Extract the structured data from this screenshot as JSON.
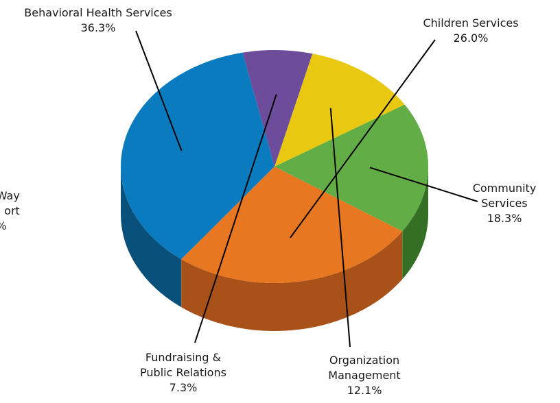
{
  "chart_data": {
    "type": "pie",
    "style": "3d",
    "title": "",
    "legend": "none",
    "slices": [
      {
        "label": "Behavioral Health Services",
        "label_lines": [
          "Behavioral Health Services"
        ],
        "value_text": "36.3%",
        "value": 36.3,
        "color": "#0A7BBE",
        "side_color": "#08507A"
      },
      {
        "label": "Children Services",
        "label_lines": [
          "Children Services"
        ],
        "value_text": "26.0%",
        "value": 26.0,
        "color": "#E87722",
        "side_color": "#A8521A"
      },
      {
        "label": "Community Services",
        "label_lines": [
          "Community",
          "Services"
        ],
        "value_text": "18.3%",
        "value": 18.3,
        "color": "#62AD45",
        "side_color": "#356F26"
      },
      {
        "label": "Organization Management",
        "label_lines": [
          "Organization",
          "Management"
        ],
        "value_text": "12.1%",
        "value": 12.1,
        "color": "#E8C810",
        "side_color": "#8F7D0A"
      },
      {
        "label": "Fundraising & Public Relations",
        "label_lines": [
          "Fundraising &",
          "Public Relations"
        ],
        "value_text": "7.3%",
        "value": 7.3,
        "color": "#6D4C9C",
        "side_color": "#44295F"
      },
      {
        "label": "United Way Support",
        "label_lines": [
          "Way",
          "ort",
          "%"
        ],
        "value_text": "",
        "value": 0,
        "color": "#0A7BBE",
        "side_color": "#08507A"
      }
    ]
  }
}
